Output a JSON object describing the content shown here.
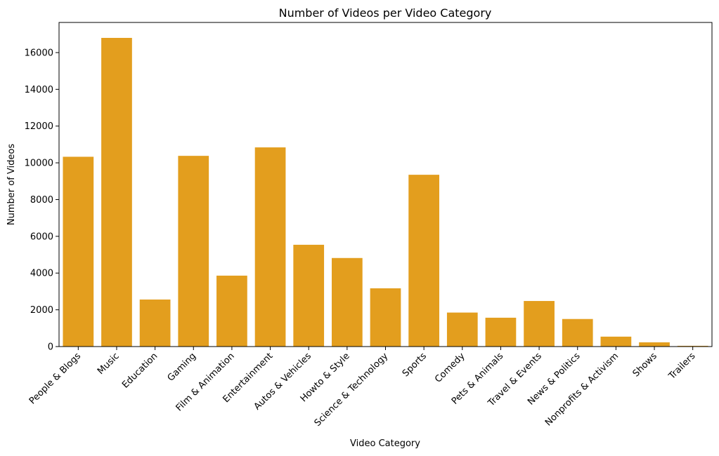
{
  "chart_data": {
    "type": "bar",
    "title": "Number of Videos per Video Category",
    "xlabel": "Video Category",
    "ylabel": "Number of Videos",
    "categories": [
      "People & Blogs",
      "Music",
      "Education",
      "Gaming",
      "Film & Animation",
      "Entertainment",
      "Autos & Vehicles",
      "Howto & Style",
      "Science & Technology",
      "Sports",
      "Comedy",
      "Pets & Animals",
      "Travel & Events",
      "News & Politics",
      "Nonprofits & Activism",
      "Shows",
      "Trailers"
    ],
    "values": [
      10330,
      16800,
      2560,
      10380,
      3860,
      10840,
      5540,
      4820,
      3170,
      9350,
      1850,
      1570,
      2480,
      1500,
      540,
      230,
      40
    ],
    "yticks": [
      0,
      2000,
      4000,
      6000,
      8000,
      10000,
      12000,
      14000,
      16000
    ],
    "ylim": [
      0,
      17640
    ],
    "bar_color": "#e39e1e",
    "grid": false,
    "legend": "none"
  }
}
